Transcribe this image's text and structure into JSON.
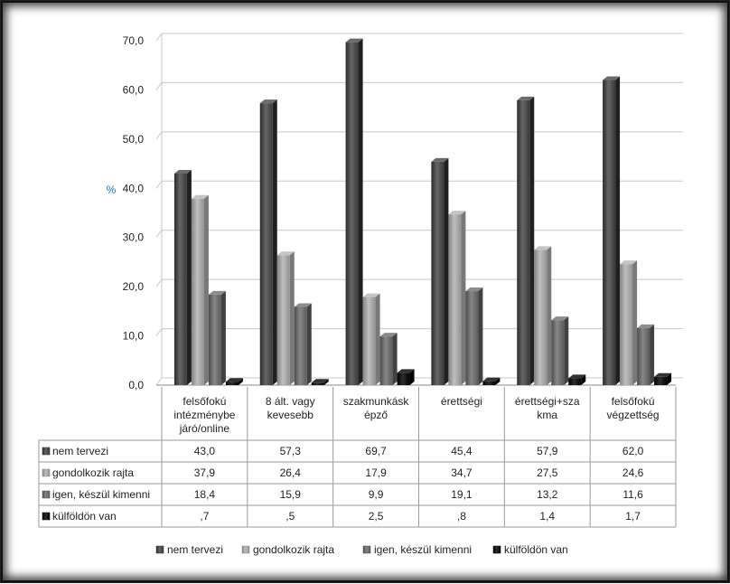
{
  "chart_data": {
    "type": "bar",
    "ylabel": "%",
    "ylim": [
      0,
      70
    ],
    "yticks": [
      "0,0",
      "10,0",
      "20,0",
      "30,0",
      "40,0",
      "50,0",
      "60,0",
      "70,0"
    ],
    "grid": true,
    "legend_position": "bottom",
    "categories": [
      [
        "felsőfokú",
        "intézménybe",
        "járó/online"
      ],
      [
        "8 ált. vagy",
        "kevesebb"
      ],
      [
        "szakmunkásk",
        "épző"
      ],
      [
        "érettségi"
      ],
      [
        "érettségi+sza",
        "kma"
      ],
      [
        "felsőfokú",
        "végzettség"
      ]
    ],
    "series": [
      {
        "name": "nem tervezi",
        "color": "#4d4d4d",
        "values": [
          43.0,
          57.3,
          69.7,
          45.4,
          57.9,
          62.0
        ],
        "labels": [
          "43,0",
          "57,3",
          "69,7",
          "45,4",
          "57,9",
          "62,0"
        ]
      },
      {
        "name": "gondolkozik rajta",
        "color": "#a6a6a6",
        "values": [
          37.9,
          26.4,
          17.9,
          34.7,
          27.5,
          24.6
        ],
        "labels": [
          "37,9",
          "26,4",
          "17,9",
          "34,7",
          "27,5",
          "24,6"
        ]
      },
      {
        "name": "igen, készül kimenni",
        "color": "#6e6e6e",
        "values": [
          18.4,
          15.9,
          9.9,
          19.1,
          13.2,
          11.6
        ],
        "labels": [
          "18,4",
          "15,9",
          "9,9",
          "19,1",
          "13,2",
          "11,6"
        ]
      },
      {
        "name": "külföldön van",
        "color": "#141414",
        "values": [
          0.7,
          0.5,
          2.5,
          0.8,
          1.4,
          1.7
        ],
        "labels": [
          ",7",
          ",5",
          "2,5",
          ",8",
          "1,4",
          "1,7"
        ]
      }
    ]
  }
}
